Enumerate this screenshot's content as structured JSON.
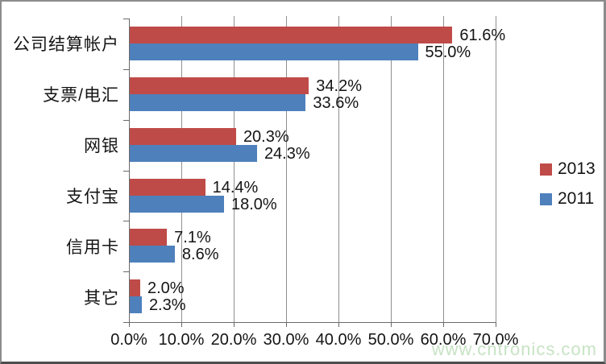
{
  "chart_data": {
    "type": "bar",
    "orientation": "horizontal",
    "title": "",
    "categories": [
      "公司结算帐户",
      "支票/电汇",
      "网银",
      "支付宝",
      "信用卡",
      "其它"
    ],
    "series": [
      {
        "name": "2013",
        "color": "#bf4b48",
        "values": [
          61.6,
          34.2,
          20.3,
          14.4,
          7.1,
          2.0
        ],
        "labels": [
          "61.6%",
          "34.2%",
          "20.3%",
          "14.4%",
          "7.1%",
          "2.0%"
        ]
      },
      {
        "name": "2011",
        "color": "#4e80bc",
        "values": [
          55.0,
          33.6,
          24.3,
          18.0,
          8.6,
          2.3
        ],
        "labels": [
          "55.0%",
          "33.6%",
          "24.3%",
          "18.0%",
          "8.6%",
          "2.3%"
        ]
      }
    ],
    "x_axis": {
      "min": 0,
      "max": 70,
      "step": 10,
      "ticks": [
        "0.0%",
        "10.0%",
        "20.0%",
        "30.0%",
        "40.0%",
        "50.0%",
        "60.0%",
        "70.0%"
      ]
    },
    "grid": true,
    "legend_position": "right"
  },
  "watermark": {
    "text": "www.cntronics.com",
    "color": "#c7e3c4"
  }
}
